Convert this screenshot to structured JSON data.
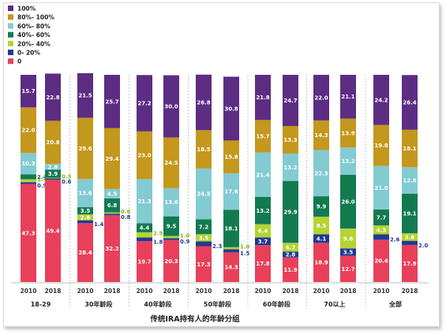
{
  "chart_data": {
    "type": "bar",
    "stacked": true,
    "title": "",
    "xlabel": "传统IRA持有人的年龄分组",
    "ylabel": "",
    "ylim": [
      0,
      100
    ],
    "legend": {
      "position": "top-left"
    },
    "groups": [
      "18-29",
      "30年龄段",
      "40年龄段",
      "50年龄段",
      "60年龄段",
      "70以上",
      "全部"
    ],
    "categories": [
      "2010",
      "2018",
      "2010",
      "2018",
      "2010",
      "2018",
      "2010",
      "2018",
      "2010",
      "2018",
      "2010",
      "2018",
      "2010",
      "2018"
    ],
    "series": [
      {
        "name": "0",
        "color": "#e8405a",
        "values": [
          47.3,
          49.4,
          28.4,
          32.2,
          19.7,
          20.3,
          17.3,
          14.3,
          17.8,
          11.9,
          18.9,
          12.7,
          20.4,
          17.9
        ]
      },
      {
        "name": "0- 20%",
        "color": "#1f3a93",
        "values": [
          0.9,
          0.6,
          1.4,
          0.8,
          1.8,
          0.9,
          2.3,
          1.5,
          3.7,
          2.8,
          4.1,
          3.5,
          2.6,
          2.0
        ]
      },
      {
        "name": "20%- 40%",
        "color": "#b5d334",
        "values": [
          1.4,
          0.3,
          2.8,
          0.6,
          2.5,
          1.0,
          3.5,
          1.0,
          6.4,
          4.2,
          8.5,
          9.6,
          4.3,
          3.6
        ]
      },
      {
        "name": "40%- 60%",
        "color": "#137a50",
        "values": [
          2.4,
          3.9,
          3.5,
          6.8,
          4.4,
          9.5,
          7.2,
          18.1,
          13.2,
          29.9,
          9.9,
          26.0,
          7.7,
          19.1
        ]
      },
      {
        "name": "60%- 80%",
        "color": "#82cbd2",
        "values": [
          10.3,
          2.8,
          13.6,
          4.5,
          21.3,
          13.6,
          24.5,
          17.6,
          21.4,
          13.2,
          22.3,
          13.2,
          21.0,
          12.8
        ]
      },
      {
        "name": "80%- 100%",
        "color": "#c4971d",
        "values": [
          22.0,
          20.8,
          29.6,
          29.4,
          23.0,
          24.5,
          18.5,
          15.8,
          15.7,
          13.3,
          14.3,
          13.9,
          19.8,
          18.1
        ]
      },
      {
        "name": "100%",
        "color": "#5c2d83",
        "values": [
          15.7,
          22.8,
          21.5,
          25.7,
          27.2,
          30.0,
          26.8,
          30.8,
          21.8,
          24.7,
          22.0,
          21.1,
          24.2,
          26.4
        ]
      }
    ],
    "labels": [
      [
        "47.3",
        "0.9",
        "1.4",
        "2.4",
        "10.3",
        "22.0",
        "15.7"
      ],
      [
        "49.4",
        "0.6",
        "0.3",
        "3.9",
        "2.8",
        "20.8",
        "22.8"
      ],
      [
        "28.4",
        "1.4",
        "2.8",
        "3.5",
        "13.6",
        "29.6",
        "21.5"
      ],
      [
        "32.2",
        "0.8",
        "0.6",
        "6.8",
        "4.5",
        "29.4",
        "25.7"
      ],
      [
        "19.7",
        "1.8",
        "2.5",
        "4.4",
        "21.3",
        "23.0",
        "27.2"
      ],
      [
        "20.3",
        "0.9",
        "1.0",
        "9.5",
        "13.6",
        "24.5",
        "30.0"
      ],
      [
        "17.3",
        "2.3",
        "3.5",
        "7.2",
        "24.5",
        "18.5",
        "26.8"
      ],
      [
        "14.3",
        "1.5",
        "1.0",
        "18.1",
        "17.6",
        "15.8",
        "30.8"
      ],
      [
        "17.8",
        "3.7",
        "6.4",
        "13.2",
        "21.4",
        "15.7",
        "21.8"
      ],
      [
        "11.9",
        "2.8",
        "4.2",
        "29.9",
        "13.2",
        "13.3",
        "24.7"
      ],
      [
        "18.9",
        "4.1",
        "8.5",
        "9.9",
        "22.3",
        "14.3",
        "22.0"
      ],
      [
        "12.7",
        "3.5",
        "9.6",
        "26.0",
        "13.2",
        "13.9",
        "21.1"
      ],
      [
        "20.4",
        "2.6",
        "4.3",
        "7.7",
        "21.0",
        "19.8",
        "24.2"
      ],
      [
        "17.9",
        "2.0",
        "3.6",
        "19.1",
        "12.8",
        "18.1",
        "26.4"
      ]
    ]
  }
}
